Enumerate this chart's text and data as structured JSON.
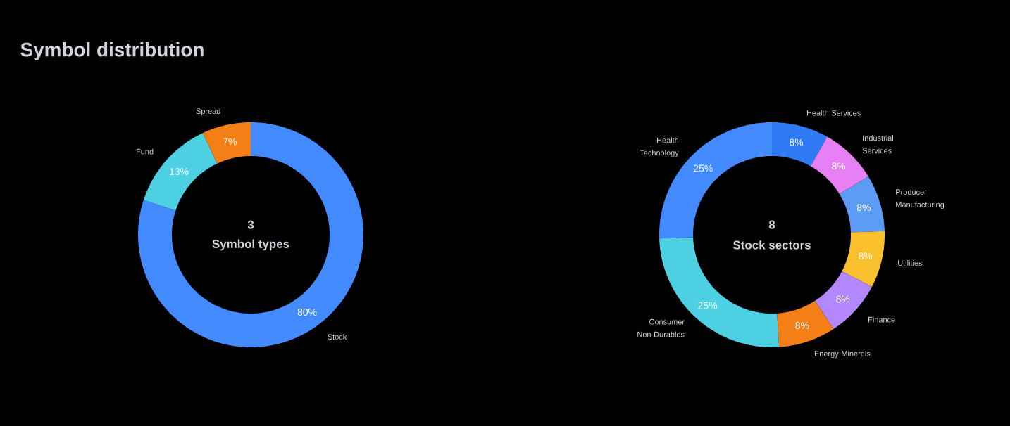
{
  "chart_data": [
    {
      "type": "donut",
      "title": "Symbol distribution",
      "categories": [
        "Stock",
        "Fund",
        "Spread"
      ],
      "values": [
        80,
        13,
        7
      ],
      "colors": [
        "#448aff",
        "#4dd0e1",
        "#f57f17"
      ],
      "value_labels": [
        "80%",
        "13%",
        "7%"
      ],
      "annotations": [
        "3",
        "Symbol types"
      ]
    },
    {
      "type": "donut",
      "categories": [
        "Health Services",
        "Industrial Services",
        "Producer Manufacturing",
        "Utilities",
        "Finance",
        "Energy Minerals",
        "Consumer Non-Durables",
        "Health Technology"
      ],
      "values": [
        8,
        8,
        8,
        8,
        8,
        8,
        25,
        25
      ],
      "colors": [
        "#2f7bf5",
        "#e880f5",
        "#5c9cf5",
        "#fbc02d",
        "#b388ff",
        "#f57f17",
        "#4dd0e1",
        "#448aff"
      ],
      "value_labels": [
        "8%",
        "8%",
        "8%",
        "8%",
        "8%",
        "8%",
        "25%",
        "25%"
      ],
      "annotations": [
        "8",
        "Stock sectors"
      ]
    }
  ]
}
